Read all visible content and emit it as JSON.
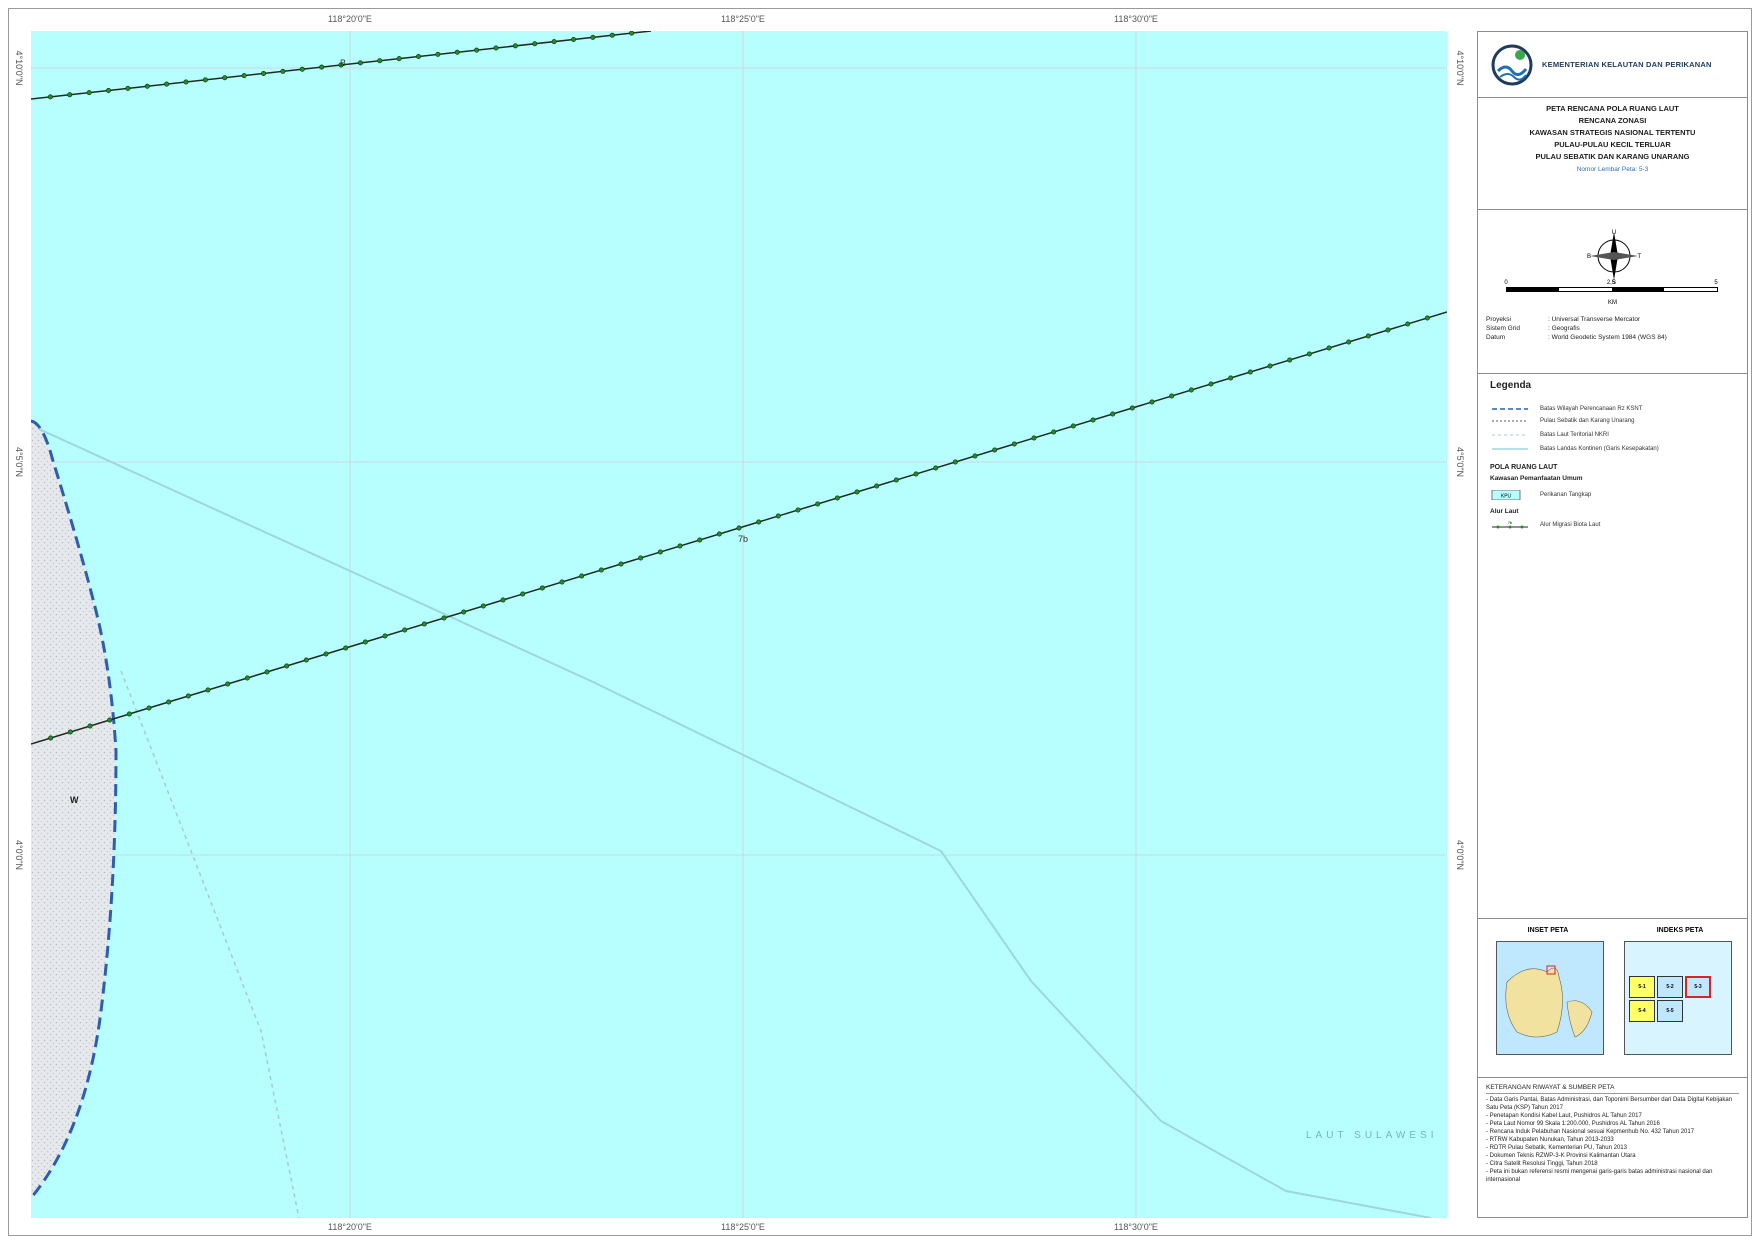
{
  "coords": {
    "top": [
      "118°20'0\"E",
      "118°25'0\"E",
      "118°30'0\"E"
    ],
    "bottom": [
      "118°20'0\"E",
      "118°25'0\"E",
      "118°30'0\"E"
    ],
    "left": [
      "4°10'0\"N",
      "4°5'0\"N",
      "4°0'0\"N"
    ],
    "right": [
      "4°10'0\"N",
      "4°5'0\"N",
      "4°0'0\"N"
    ]
  },
  "map": {
    "sea_label": "LAUT SULAWESI",
    "island_label": "W",
    "route_labels": [
      "B",
      "7b"
    ],
    "colors": {
      "sea": "#b7ffff",
      "land": "#e4e8ec",
      "route": "#1f8f2c",
      "dash": "#2a5fb0",
      "boundary": "#9dd6e0"
    }
  },
  "sidebar": {
    "agency": "KEMENTERIAN KELAUTAN DAN PERIKANAN",
    "title_lines": [
      "PETA RENCANA POLA RUANG LAUT",
      "RENCANA ZONASI",
      "KAWASAN STRATEGIS NASIONAL TERTENTU",
      "PULAU-PULAU KECIL TERLUAR",
      "PULAU SEBATIK DAN KARANG UNARANG"
    ],
    "sheet": "Nomor Lembar Peta: 5-3",
    "compass": {
      "n": "U",
      "s": "S",
      "e": "T",
      "w": "B"
    },
    "scale": {
      "ticks": [
        "0",
        "2,5",
        "5"
      ],
      "unit": "KM"
    },
    "projection": [
      {
        "k": "Proyeksi",
        "v": ": Universal Transverse Mercator"
      },
      {
        "k": "Sistem Grid",
        "v": ": Geografis"
      },
      {
        "k": "Datum",
        "v": ": World Geodetic System 1984 (WGS 84)"
      }
    ],
    "legend": {
      "title": "Legenda",
      "lines": [
        "Batas Wilayah Perencanaan Rz KSNT",
        "Pulau Sebatik dan Karang Unarang",
        "Batas Laut Teritorial NKRI",
        "Batas Landas Kontinen (Garis Kesepakatan)"
      ],
      "pola_title": "POLA RUANG LAUT",
      "pola_sub": "Kawasan Pemanfaatan Umum",
      "pola_item_code": "KPU",
      "pola_item": "Perikanan Tangkap",
      "alur_title": "Alur Laut",
      "alur_code": "7b",
      "alur_item": "Alur Migrasi Biota Laut"
    },
    "inset": {
      "title": "INSET PETA",
      "index_title": "INDEKS PETA",
      "cells": [
        "5-1",
        "5-2",
        "5-3",
        "5-4",
        "5-5"
      ]
    },
    "notes": {
      "title": "KETERANGAN RIWAYAT & SUMBER PETA",
      "items": [
        "- Data Garis Pantai, Batas Administrasi, dan Toponimi Bersumber dari Data Digital Kebijakan Satu Peta (KSP) Tahun 2017",
        "- Penetapan Kondisi Kabel Laut, Pushidros AL Tahun 2017",
        "- Peta Laut Nomor 99 Skala 1:200.000, Pushidros AL Tahun 2016",
        "- Rencana Induk Pelabuhan Nasional sesuai Kepmenhub No. 432 Tahun 2017",
        "- RTRW Kabupaten Nunukan, Tahun 2013-2033",
        "- RDTR Pulau Sebatik, Kementerian PU, Tahun 2013",
        "- Dokumen Teknis RZWP-3-K Provinsi Kalimantan Utara",
        "- Citra Satelit Resolusi Tinggi, Tahun 2018",
        "- Peta ini bukan referensi resmi mengenai garis-garis batas administrasi nasional dan internasional"
      ]
    }
  }
}
